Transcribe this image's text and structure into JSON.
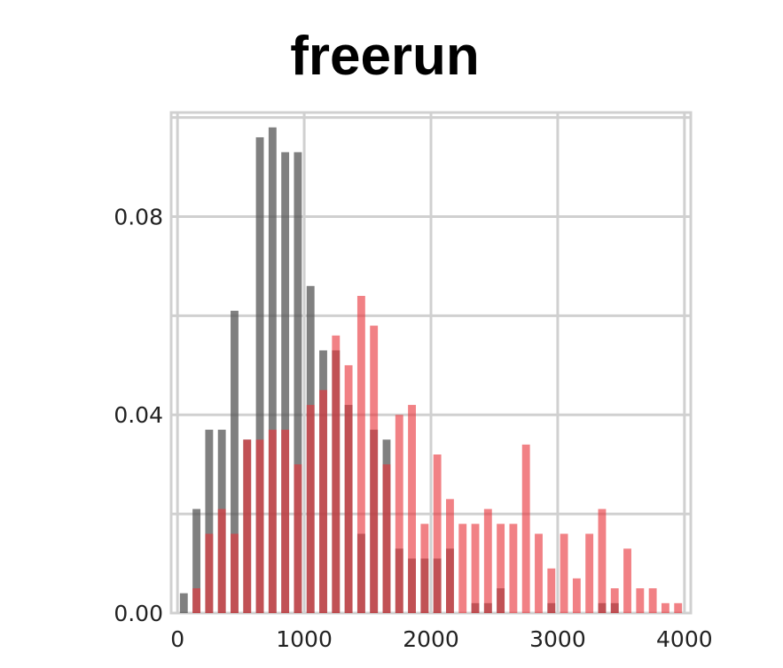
{
  "chart_data": {
    "type": "bar",
    "title": "freerun",
    "xlabel": "",
    "ylabel": "",
    "xlim": [
      -50,
      4050
    ],
    "ylim": [
      0,
      0.101
    ],
    "bin_width": 100,
    "grid": true,
    "legend": "none",
    "x_ticks": [
      "0",
      "1000",
      "2000",
      "3000",
      "4000"
    ],
    "x_tick_values": [
      0,
      1000,
      2000,
      3000,
      4000
    ],
    "y_ticks": [
      "0.00",
      "0.04",
      "0.08"
    ],
    "y_tick_values": [
      0.0,
      0.04,
      0.08
    ],
    "series": [
      {
        "color": "#555555",
        "opacity": 0.75,
        "bins": [
          {
            "x": 50,
            "y": 0.004
          },
          {
            "x": 150,
            "y": 0.021
          },
          {
            "x": 250,
            "y": 0.037
          },
          {
            "x": 350,
            "y": 0.037
          },
          {
            "x": 450,
            "y": 0.061
          },
          {
            "x": 550,
            "y": 0.035
          },
          {
            "x": 650,
            "y": 0.096
          },
          {
            "x": 750,
            "y": 0.098
          },
          {
            "x": 850,
            "y": 0.093
          },
          {
            "x": 950,
            "y": 0.093
          },
          {
            "x": 1050,
            "y": 0.066
          },
          {
            "x": 1150,
            "y": 0.053
          },
          {
            "x": 1250,
            "y": 0.053
          },
          {
            "x": 1350,
            "y": 0.042
          },
          {
            "x": 1450,
            "y": 0.016
          },
          {
            "x": 1550,
            "y": 0.037
          },
          {
            "x": 1650,
            "y": 0.035
          },
          {
            "x": 1750,
            "y": 0.013
          },
          {
            "x": 1850,
            "y": 0.011
          },
          {
            "x": 1950,
            "y": 0.011
          },
          {
            "x": 2050,
            "y": 0.011
          },
          {
            "x": 2150,
            "y": 0.013
          },
          {
            "x": 2350,
            "y": 0.002
          },
          {
            "x": 2450,
            "y": 0.002
          },
          {
            "x": 2550,
            "y": 0.005
          },
          {
            "x": 2950,
            "y": 0.002
          },
          {
            "x": 3350,
            "y": 0.002
          },
          {
            "x": 3450,
            "y": 0.002
          }
        ]
      },
      {
        "color": "#e8333a",
        "opacity": 0.62,
        "bins": [
          {
            "x": 150,
            "y": 0.005
          },
          {
            "x": 250,
            "y": 0.016
          },
          {
            "x": 350,
            "y": 0.021
          },
          {
            "x": 450,
            "y": 0.016
          },
          {
            "x": 550,
            "y": 0.035
          },
          {
            "x": 650,
            "y": 0.035
          },
          {
            "x": 750,
            "y": 0.037
          },
          {
            "x": 850,
            "y": 0.037
          },
          {
            "x": 950,
            "y": 0.03
          },
          {
            "x": 1050,
            "y": 0.042
          },
          {
            "x": 1150,
            "y": 0.045
          },
          {
            "x": 1250,
            "y": 0.056
          },
          {
            "x": 1350,
            "y": 0.05
          },
          {
            "x": 1450,
            "y": 0.064
          },
          {
            "x": 1550,
            "y": 0.058
          },
          {
            "x": 1650,
            "y": 0.03
          },
          {
            "x": 1750,
            "y": 0.04
          },
          {
            "x": 1850,
            "y": 0.042
          },
          {
            "x": 1950,
            "y": 0.018
          },
          {
            "x": 2050,
            "y": 0.032
          },
          {
            "x": 2150,
            "y": 0.023
          },
          {
            "x": 2250,
            "y": 0.018
          },
          {
            "x": 2350,
            "y": 0.018
          },
          {
            "x": 2450,
            "y": 0.021
          },
          {
            "x": 2550,
            "y": 0.018
          },
          {
            "x": 2650,
            "y": 0.018
          },
          {
            "x": 2750,
            "y": 0.034
          },
          {
            "x": 2850,
            "y": 0.016
          },
          {
            "x": 2950,
            "y": 0.009
          },
          {
            "x": 3050,
            "y": 0.016
          },
          {
            "x": 3150,
            "y": 0.007
          },
          {
            "x": 3250,
            "y": 0.016
          },
          {
            "x": 3350,
            "y": 0.021
          },
          {
            "x": 3450,
            "y": 0.005
          },
          {
            "x": 3550,
            "y": 0.013
          },
          {
            "x": 3650,
            "y": 0.005
          },
          {
            "x": 3750,
            "y": 0.005
          },
          {
            "x": 3850,
            "y": 0.002
          },
          {
            "x": 3950,
            "y": 0.002
          }
        ]
      }
    ]
  }
}
